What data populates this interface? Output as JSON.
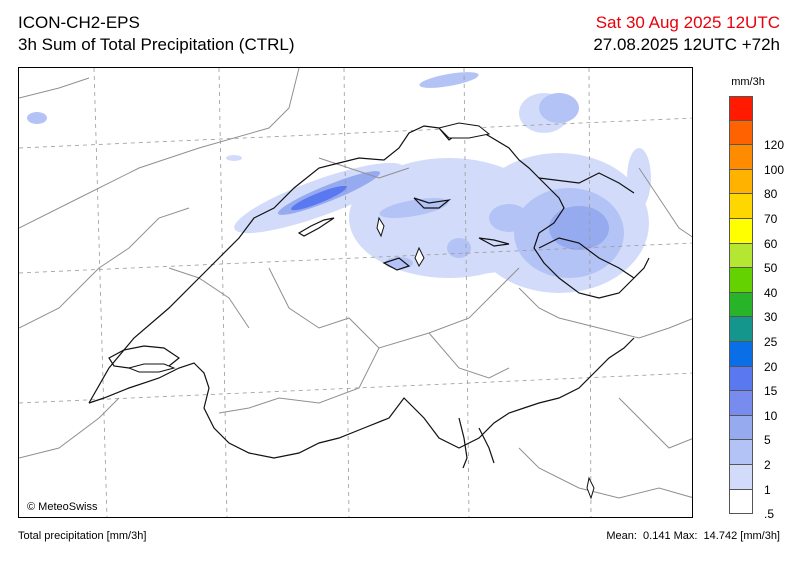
{
  "header": {
    "model": "ICON-CH2-EPS",
    "product": "3h Sum of Total Precipitation (CTRL)",
    "valid_time": "Sat 30 Aug 2025 12UTC",
    "run_info": "27.08.2025 12UTC +72h"
  },
  "map": {
    "copyright": "© MeteoSwiss",
    "colors": {
      "border": "#111111",
      "admin": "#909090",
      "grid": "#9a9a9a"
    }
  },
  "legend": {
    "unit": "mm/3h",
    "classes": [
      {
        "label": "",
        "color": "#ff1a00"
      },
      {
        "label": "120",
        "color": "#ff6200"
      },
      {
        "label": "100",
        "color": "#ff8c00"
      },
      {
        "label": "80",
        "color": "#ffb300"
      },
      {
        "label": "70",
        "color": "#ffd700"
      },
      {
        "label": "60",
        "color": "#ffff00"
      },
      {
        "label": "50",
        "color": "#b4e632"
      },
      {
        "label": "40",
        "color": "#64d200"
      },
      {
        "label": "30",
        "color": "#28b428"
      },
      {
        "label": "25",
        "color": "#14968c"
      },
      {
        "label": "20",
        "color": "#0a6ee6"
      },
      {
        "label": "15",
        "color": "#5a78f0"
      },
      {
        "label": "10",
        "color": "#788cf0"
      },
      {
        "label": "5",
        "color": "#96aaf0"
      },
      {
        "label": "2",
        "color": "#b4c3f5"
      },
      {
        "label": "1",
        "color": "#d2dcfa"
      },
      {
        "label": ".5",
        "color": "#ffffff"
      }
    ]
  },
  "footer": {
    "variable": "Total precipitation [mm/3h]",
    "stats": "Mean:  0.141 Max:  14.742 [mm/3h]"
  }
}
